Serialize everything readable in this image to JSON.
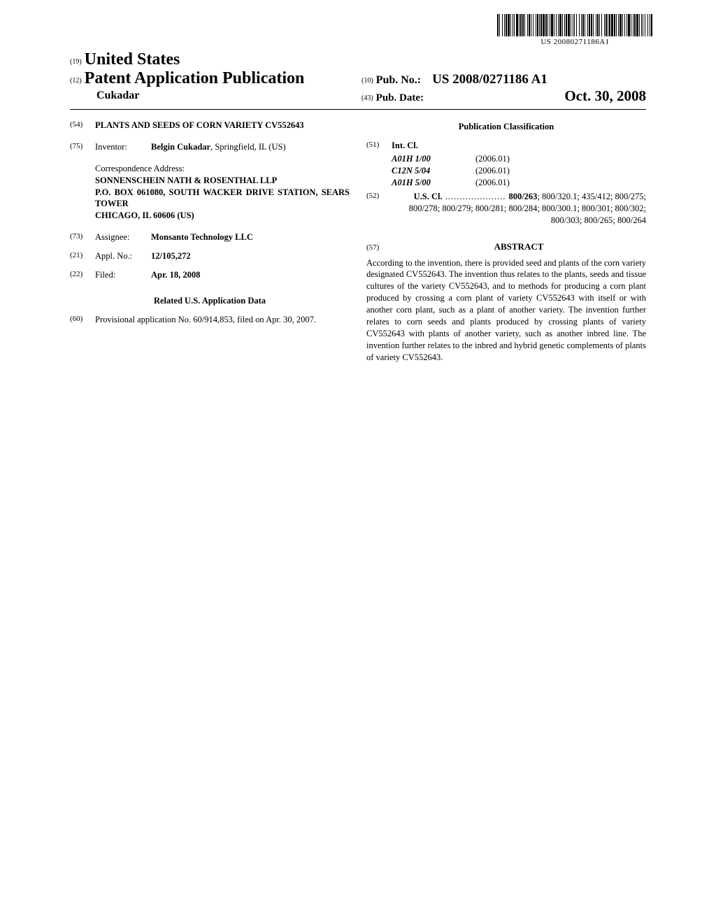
{
  "barcode_number": "US 20080271186A1",
  "header": {
    "country_code": "(19)",
    "country": "United States",
    "kind_code": "(12)",
    "kind": "Patent Application Publication",
    "surname": "Cukadar",
    "pubno_code": "(10)",
    "pubno_label": "Pub. No.:",
    "pubno": "US 2008/0271186 A1",
    "pubdate_code": "(43)",
    "pubdate_label": "Pub. Date:",
    "pubdate": "Oct. 30, 2008"
  },
  "left": {
    "title_code": "(54)",
    "title": "PLANTS AND SEEDS OF CORN VARIETY CV552643",
    "inventor_code": "(75)",
    "inventor_label": "Inventor:",
    "inventor_name": "Belgin Cukadar",
    "inventor_loc": ", Springfield, IL (US)",
    "corr_label": "Correspondence Address:",
    "corr_line1": "SONNENSCHEIN NATH & ROSENTHAL LLP",
    "corr_line2": "P.O. BOX 061080, SOUTH WACKER DRIVE STATION, SEARS TOWER",
    "corr_line3": "CHICAGO, IL 60606 (US)",
    "assignee_code": "(73)",
    "assignee_label": "Assignee:",
    "assignee": "Monsanto Technology LLC",
    "appl_code": "(21)",
    "appl_label": "Appl. No.:",
    "appl_no": "12/105,272",
    "filed_code": "(22)",
    "filed_label": "Filed:",
    "filed": "Apr. 18, 2008",
    "related_head": "Related U.S. Application Data",
    "prov_code": "(60)",
    "prov_text": "Provisional application No. 60/914,853, filed on Apr. 30, 2007."
  },
  "right": {
    "pubclass_head": "Publication Classification",
    "intcl_code": "(51)",
    "intcl_label": "Int. Cl.",
    "intcl": [
      {
        "code": "A01H 1/00",
        "ver": "(2006.01)"
      },
      {
        "code": "C12N 5/04",
        "ver": "(2006.01)"
      },
      {
        "code": "A01H 5/00",
        "ver": "(2006.01)"
      }
    ],
    "uscl_code": "(52)",
    "uscl_label": "U.S. Cl.",
    "uscl_lead": "800/263",
    "uscl_rest": "; 800/320.1; 435/412; 800/275; 800/278; 800/279; 800/281; 800/284; 800/300.1; 800/301; 800/302; 800/303; 800/265; 800/264",
    "abstract_code": "(57)",
    "abstract_head": "ABSTRACT",
    "abstract": "According to the invention, there is provided seed and plants of the corn variety designated CV552643. The invention thus relates to the plants, seeds and tissue cultures of the variety CV552643, and to methods for producing a corn plant produced by crossing a corn plant of variety CV552643 with itself or with another corn plant, such as a plant of another variety. The invention further relates to corn seeds and plants produced by crossing plants of variety CV552643 with plants of another variety, such as another inbred line. The invention further relates to the inbred and hybrid genetic complements of plants of variety CV552643."
  }
}
